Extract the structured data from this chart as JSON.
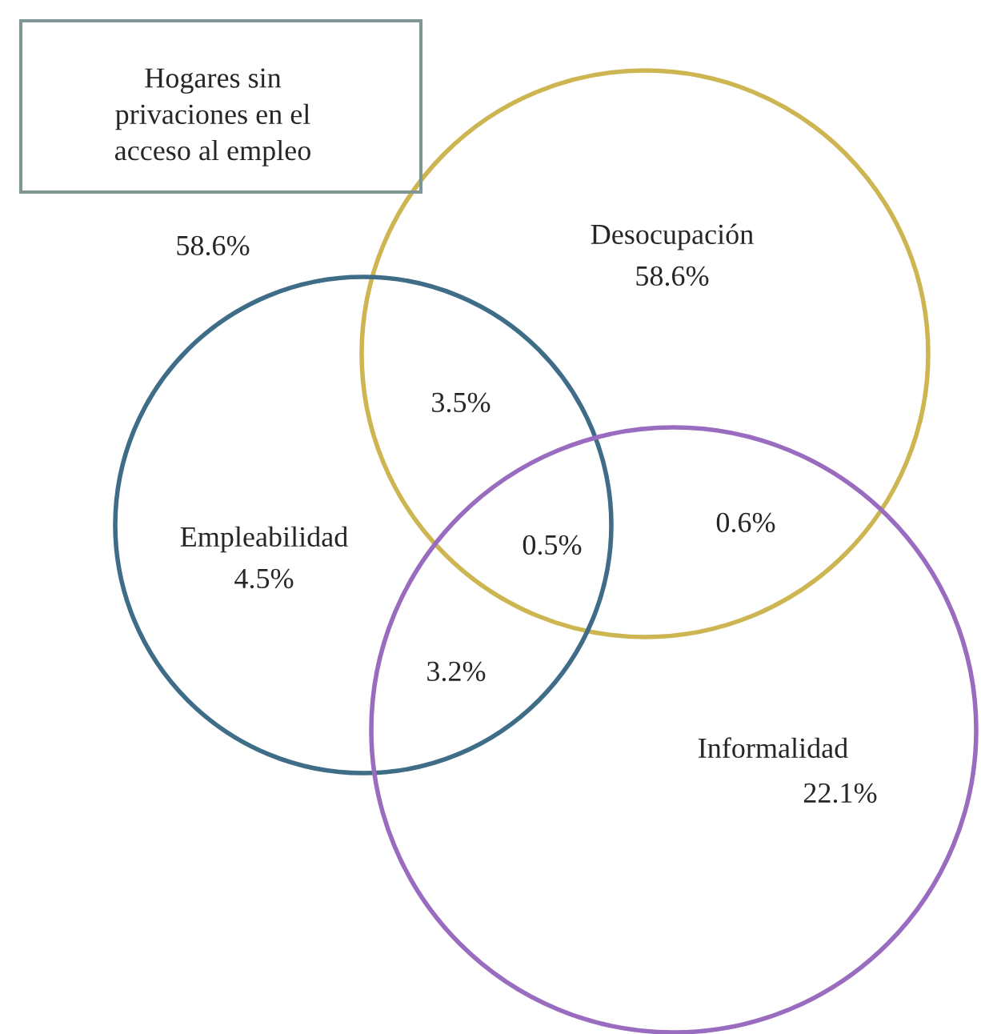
{
  "chart_data": {
    "type": "other",
    "categories": [
      "Hogares sin\nprivaciones en el\nacceso al empleo",
      "Desocupación",
      "Empleabilidad",
      "Informalidad"
    ],
    "values": [
      58.6,
      58.6,
      4.5,
      22.1
    ],
    "value_labels": [
      "58.6%",
      "58.6%",
      "4.5%",
      "22.1%"
    ],
    "data_labels": true,
    "colors": [
      null,
      "#cdb552",
      "#3f6d88",
      "#9a6cc0"
    ],
    "annotations": [
      "3.5%",
      "0.5%",
      "0.6%",
      "3.2%"
    ]
  }
}
